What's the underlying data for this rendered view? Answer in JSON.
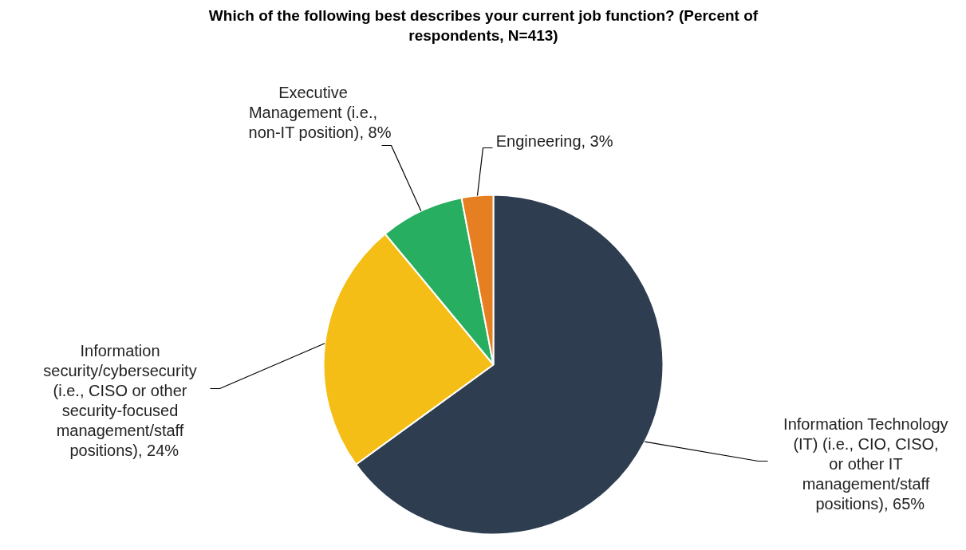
{
  "chart_data": {
    "type": "pie",
    "title": "Which of the following best describes your current job function? (Percent of respondents, N=413)",
    "categories": [
      "Information Technology (IT) (i.e., CIO, CISO, or other IT management/staff positions)",
      "Information security/cybersecurity (i.e., CISO or other security-focused management/staff positions)",
      "Executive Management (i.e., non-IT position)",
      "Engineering"
    ],
    "values": [
      65,
      24,
      8,
      3
    ],
    "colors": [
      "#2e3e50",
      "#f5be16",
      "#27ae60",
      "#e67e22"
    ],
    "value_labels": [
      ", 65%",
      ", 24%",
      ", 8%",
      ", 3%"
    ]
  }
}
